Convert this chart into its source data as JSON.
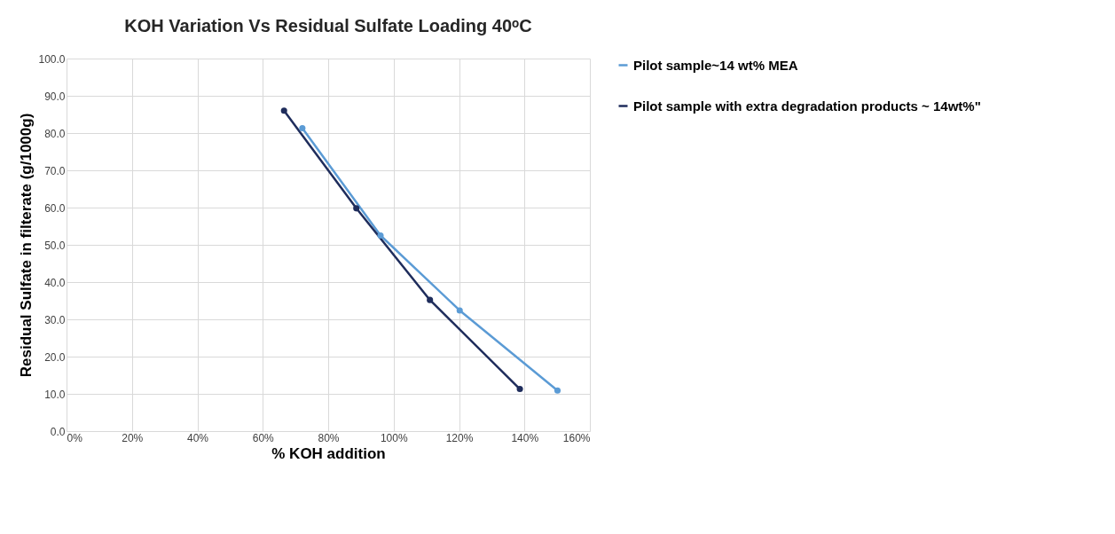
{
  "chart_data": {
    "type": "line",
    "title": "KOH Variation Vs Residual Sulfate Loading 40ᵒC",
    "xlabel": "% KOH addition",
    "ylabel": "Residual Sulfate in filterate (g/1000g)",
    "series": [
      {
        "name": "Pilot sample~14 wt% MEA",
        "color": "#5b9bd5",
        "x": [
          72.1,
          96.0,
          120.2,
          150.1
        ],
        "values": [
          81.3,
          52.5,
          32.4,
          10.9
        ]
      },
      {
        "name": "Pilot sample with extra degradation products ~ 14wt%\"",
        "color": "#1f2d5c",
        "x": [
          66.5,
          88.6,
          111.1,
          138.6
        ],
        "values": [
          86.0,
          59.8,
          35.2,
          11.3
        ]
      }
    ],
    "xlim": [
      0,
      160
    ],
    "xticks": [
      {
        "value": 0,
        "label": "0%"
      },
      {
        "value": 20,
        "label": "20%"
      },
      {
        "value": 40,
        "label": "40%"
      },
      {
        "value": 60,
        "label": "60%"
      },
      {
        "value": 80,
        "label": "80%"
      },
      {
        "value": 100,
        "label": "100%"
      },
      {
        "value": 120,
        "label": "120%"
      },
      {
        "value": 140,
        "label": "140%"
      },
      {
        "value": 160,
        "label": "160%"
      }
    ],
    "ylim": [
      0,
      100
    ],
    "yticks": [
      {
        "value": 0,
        "label": "0.0"
      },
      {
        "value": 10,
        "label": "10.0"
      },
      {
        "value": 20,
        "label": "20.0"
      },
      {
        "value": 30,
        "label": "30.0"
      },
      {
        "value": 40,
        "label": "40.0"
      },
      {
        "value": 50,
        "label": "50.0"
      },
      {
        "value": 60,
        "label": "60.0"
      },
      {
        "value": 70,
        "label": "70.0"
      },
      {
        "value": 80,
        "label": "80.0"
      },
      {
        "value": 90,
        "label": "90.0"
      },
      {
        "value": 100,
        "label": "100.0"
      }
    ],
    "grid": true,
    "legend": "right",
    "marker": "circle",
    "line_style": "solid"
  }
}
